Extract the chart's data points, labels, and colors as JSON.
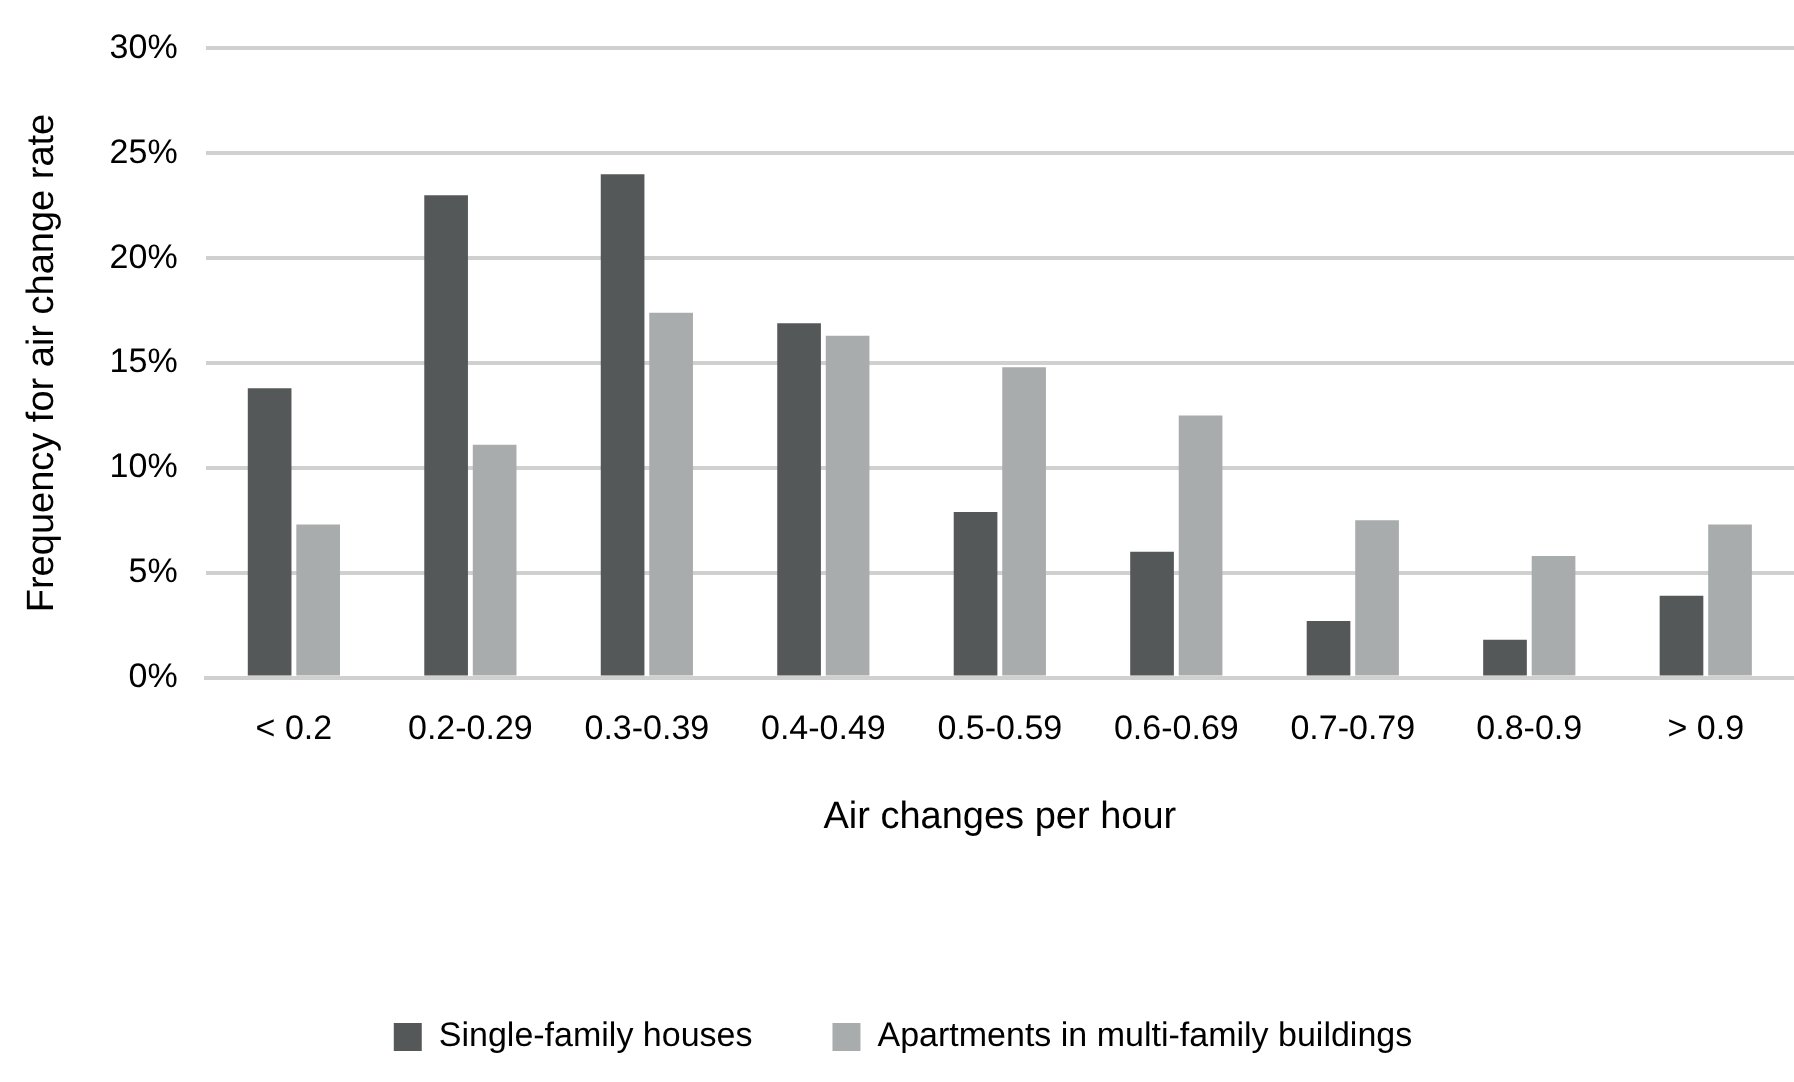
{
  "chart_data": {
    "type": "bar",
    "xlabel": "Air changes per hour",
    "ylabel": "Frequency for air change rate",
    "categories": [
      "< 0.2",
      "0.2-0.29",
      "0.3-0.39",
      "0.4-0.49",
      "0.5-0.59",
      "0.6-0.69",
      "0.7-0.79",
      "0.8-0.9",
      "> 0.9"
    ],
    "series": [
      {
        "name": "Single-family houses",
        "color": "#555859",
        "values": [
          13.8,
          23.0,
          24.0,
          16.9,
          7.9,
          6.0,
          2.7,
          1.8,
          3.9
        ]
      },
      {
        "name": "Apartments in multi-family buildings",
        "color": "#a9acac",
        "values": [
          7.3,
          11.1,
          17.4,
          16.3,
          14.8,
          12.5,
          7.5,
          5.8,
          7.3
        ]
      }
    ],
    "ylim": [
      0,
      30
    ],
    "yticks": [
      {
        "value": 0,
        "label": "0%"
      },
      {
        "value": 5,
        "label": "5%"
      },
      {
        "value": 10,
        "label": "10%"
      },
      {
        "value": 15,
        "label": "15%"
      },
      {
        "value": 20,
        "label": "20%"
      },
      {
        "value": 25,
        "label": "25%"
      },
      {
        "value": 30,
        "label": "30%"
      }
    ],
    "grid": "y",
    "legend": "bottom"
  }
}
